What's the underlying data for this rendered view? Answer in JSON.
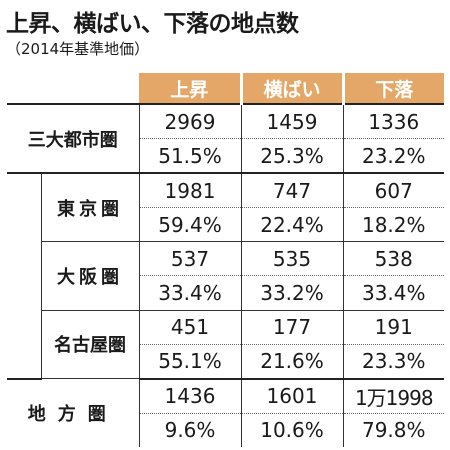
{
  "title": "上昇、横ばい、下落の地点数",
  "subtitle": "（2014年基準地価）",
  "columns": [
    "上昇",
    "横ばい",
    "下落"
  ],
  "rows": [
    {
      "label": "三大都市圏",
      "counts": [
        "2969",
        "1459",
        "1336"
      ],
      "shares": [
        "51.5%",
        "25.3%",
        "23.2%"
      ]
    },
    {
      "label": "東京圏",
      "counts": [
        "1981",
        "747",
        "607"
      ],
      "shares": [
        "59.4%",
        "22.4%",
        "18.2%"
      ]
    },
    {
      "label": "大阪圏",
      "counts": [
        "537",
        "535",
        "538"
      ],
      "shares": [
        "33.4%",
        "33.2%",
        "33.4%"
      ]
    },
    {
      "label": "名古屋圏",
      "counts": [
        "451",
        "177",
        "191"
      ],
      "shares": [
        "55.1%",
        "21.6%",
        "23.3%"
      ]
    },
    {
      "label": "地方圏",
      "counts": [
        "1436",
        "1601",
        "1万1998"
      ],
      "shares": [
        "9.6%",
        "10.6%",
        "79.8%"
      ]
    }
  ],
  "colors": {
    "header_bg": "#e4a767",
    "header_text": "#ffffff",
    "text": "#1a1a1a"
  }
}
